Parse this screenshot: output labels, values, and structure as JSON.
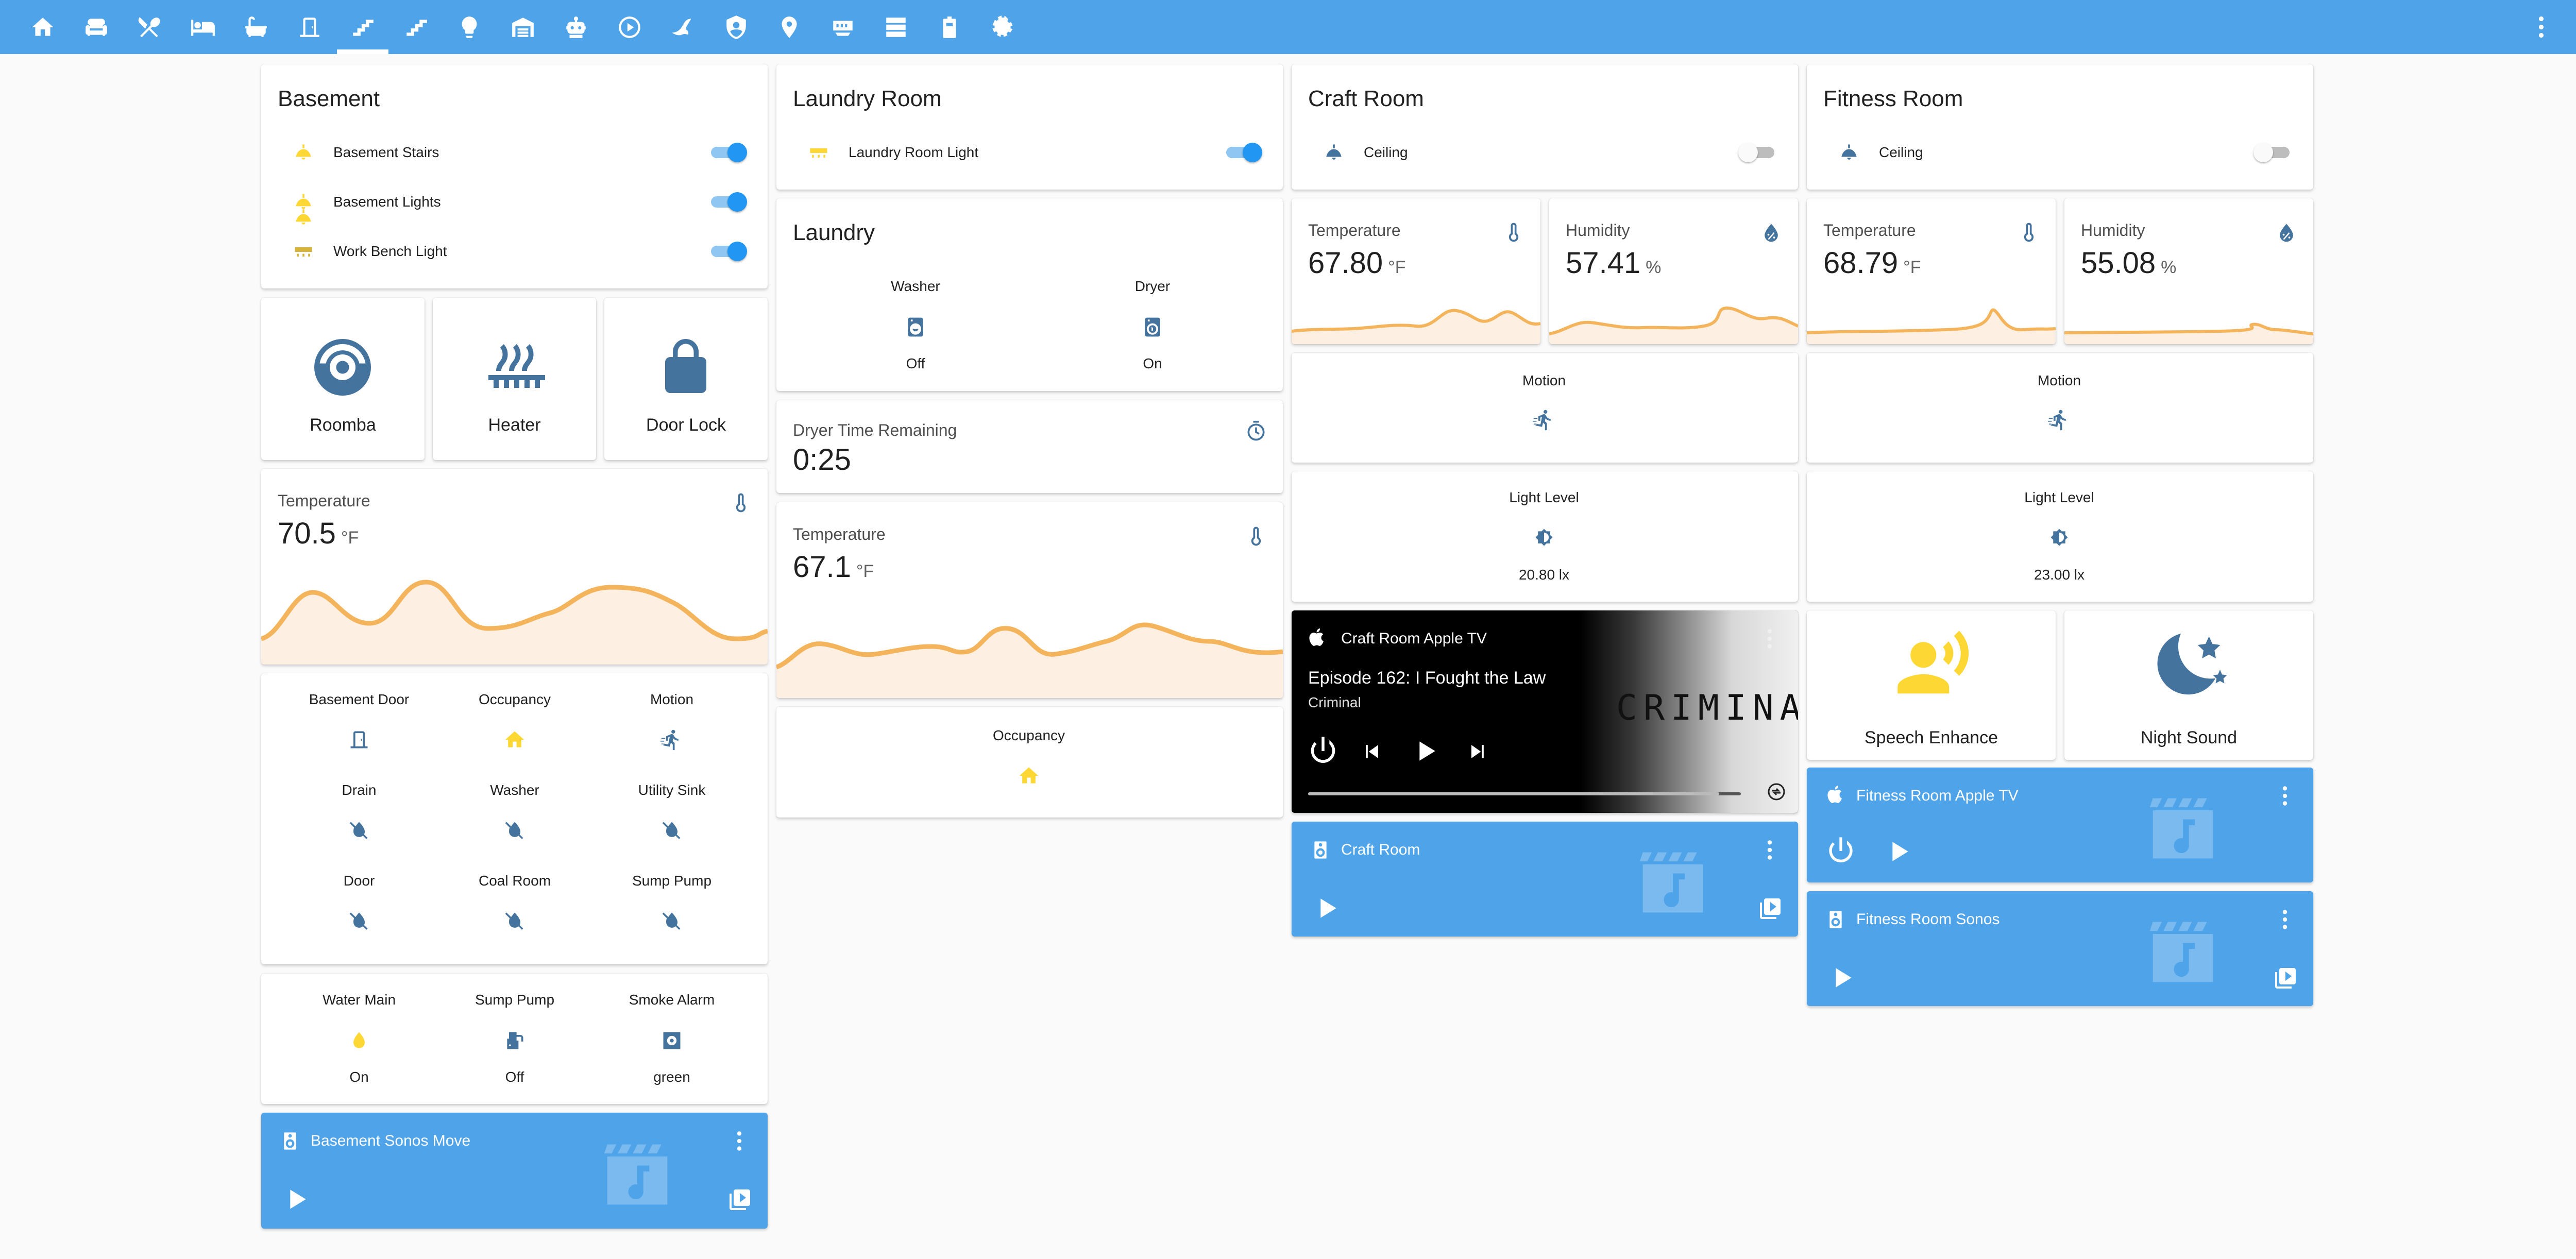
{
  "colors": {
    "toolbar": "#4ea3e9",
    "icon_blue": "#44739e",
    "state_yellow": "#fdd835",
    "toggle_on": "#2196f3",
    "graph_line": "#f4b45c",
    "graph_fill": "#fdf0e3"
  },
  "nav": {
    "icons": [
      "home-icon",
      "sofa-icon",
      "silverware-icon",
      "bed-icon",
      "bathtub-icon",
      "door-icon",
      "stairs-icon",
      "stairs-up-icon",
      "bulb-icon",
      "garage-icon",
      "robot-icon",
      "play-circle-icon",
      "flash-icon",
      "shield-icon",
      "map-marker-icon",
      "router-icon",
      "server-icon",
      "battery-icon",
      "gear-icon"
    ],
    "active_index": 6
  },
  "basement": {
    "title": "Basement",
    "lights": [
      {
        "label": "Basement Stairs",
        "state": "on"
      },
      {
        "label": "Basement Lights",
        "state": "on"
      },
      {
        "label": "Work Bench Light",
        "state": "on"
      }
    ],
    "buttons": [
      {
        "name": "Roomba",
        "icon": "robot-vacuum-icon"
      },
      {
        "name": "Heater",
        "icon": "radiator-icon"
      },
      {
        "name": "Door Lock",
        "icon": "lock-icon"
      }
    ],
    "temperature": {
      "name": "Temperature",
      "value": "70.5",
      "unit": "°F"
    },
    "binary": [
      {
        "name": "Basement Door",
        "icon": "door-icon"
      },
      {
        "name": "Occupancy",
        "icon": "home-icon"
      },
      {
        "name": "Motion",
        "icon": "run-icon"
      },
      {
        "name": "Drain",
        "icon": "water-off-icon"
      },
      {
        "name": "Washer",
        "icon": "water-off-icon"
      },
      {
        "name": "Utility Sink",
        "icon": "water-off-icon"
      },
      {
        "name": "Door",
        "icon": "water-off-icon"
      },
      {
        "name": "Coal Room",
        "icon": "water-off-icon"
      },
      {
        "name": "Sump Pump",
        "icon": "water-off-icon"
      }
    ],
    "status": [
      {
        "name": "Water Main",
        "state": "On",
        "icon": "water-icon"
      },
      {
        "name": "Sump Pump",
        "state": "Off",
        "icon": "pump-icon"
      },
      {
        "name": "Smoke Alarm",
        "state": "green",
        "icon": "smoke-detector-icon"
      }
    ],
    "sonos": {
      "title": "Basement Sonos Move"
    }
  },
  "laundry_room": {
    "title": "Laundry Room",
    "light": {
      "label": "Laundry Room Light",
      "state": "on"
    },
    "laundry": {
      "title": "Laundry",
      "items": [
        {
          "name": "Washer",
          "state": "Off"
        },
        {
          "name": "Dryer",
          "state": "On"
        }
      ]
    },
    "dryer_time": {
      "name": "Dryer Time Remaining",
      "value": "0:25"
    },
    "temperature": {
      "name": "Temperature",
      "value": "67.1",
      "unit": "°F"
    },
    "occupancy": {
      "name": "Occupancy"
    }
  },
  "craft_room": {
    "title": "Craft Room",
    "light": {
      "label": "Ceiling",
      "state": "off"
    },
    "temperature": {
      "name": "Temperature",
      "value": "67.80",
      "unit": "°F"
    },
    "humidity": {
      "name": "Humidity",
      "value": "57.41",
      "unit": "%"
    },
    "motion": {
      "name": "Motion"
    },
    "light_level": {
      "name": "Light Level",
      "value": "20.80 lx"
    },
    "apple_tv": {
      "title": "Craft Room Apple TV",
      "episode": "Episode 162: I Fought the Law",
      "show": "Criminal",
      "art_text": "CRIMINAL",
      "progress": 0.95
    },
    "sonos": {
      "title": "Craft Room"
    }
  },
  "fitness_room": {
    "title": "Fitness Room",
    "light": {
      "label": "Ceiling",
      "state": "off"
    },
    "temperature": {
      "name": "Temperature",
      "value": "68.79",
      "unit": "°F"
    },
    "humidity": {
      "name": "Humidity",
      "value": "55.08",
      "unit": "%"
    },
    "motion": {
      "name": "Motion"
    },
    "light_level": {
      "name": "Light Level",
      "value": "23.00 lx"
    },
    "buttons": [
      {
        "name": "Speech Enhance",
        "icon": "account-voice-icon"
      },
      {
        "name": "Night Sound",
        "icon": "weather-night-icon"
      }
    ],
    "apple_tv": {
      "title": "Fitness Room Apple TV"
    },
    "sonos": {
      "title": "Fitness Room Sonos"
    }
  }
}
